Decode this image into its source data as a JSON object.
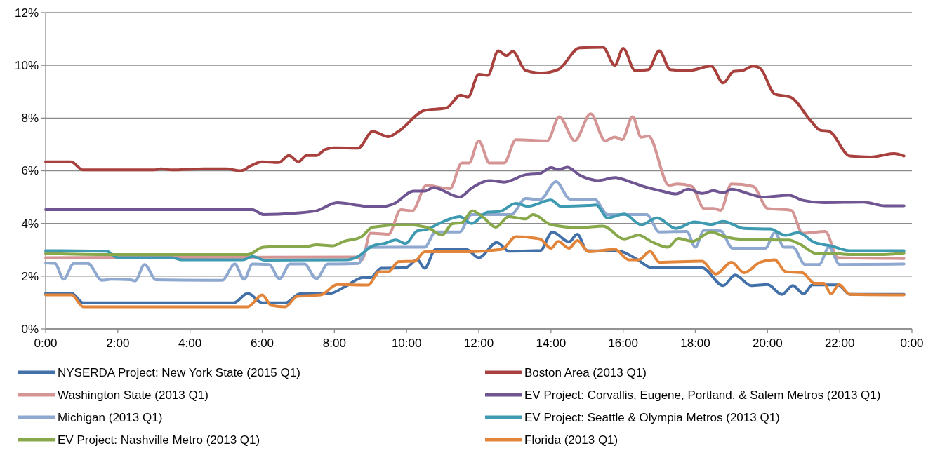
{
  "chart_data": {
    "type": "line",
    "xlim": [
      0,
      24
    ],
    "ylim": [
      0,
      12
    ],
    "xticks": [
      {
        "value": 0,
        "label": "0:00"
      },
      {
        "value": 2,
        "label": "2:00"
      },
      {
        "value": 4,
        "label": "4:00"
      },
      {
        "value": 6,
        "label": "6:00"
      },
      {
        "value": 8,
        "label": "8:00"
      },
      {
        "value": 10,
        "label": "10:00"
      },
      {
        "value": 12,
        "label": "12:00"
      },
      {
        "value": 14,
        "label": "14:00"
      },
      {
        "value": 16,
        "label": "16:00"
      },
      {
        "value": 18,
        "label": "18:00"
      },
      {
        "value": 20,
        "label": "20:00"
      },
      {
        "value": 22,
        "label": "22:00"
      },
      {
        "value": 24,
        "label": "0:00"
      }
    ],
    "yticks": [
      {
        "value": 0,
        "label": "0%"
      },
      {
        "value": 2,
        "label": "2%"
      },
      {
        "value": 4,
        "label": "4%"
      },
      {
        "value": 6,
        "label": "6%"
      },
      {
        "value": 8,
        "label": "8%"
      },
      {
        "value": 10,
        "label": "10%"
      },
      {
        "value": 12,
        "label": "12%"
      }
    ],
    "grid": "y",
    "legend": "bottom",
    "marker": "none",
    "line_style": "solid",
    "series": [
      {
        "name": "NYSERDA Project: New York State (2015 Q1)",
        "color": "#4270a8",
        "x": [
          0,
          0.72,
          1.04,
          5.21,
          5.6,
          6.0,
          6.64,
          7.04,
          7.88,
          8.34,
          8.8,
          9.0,
          9.3,
          9.97,
          10.3,
          10.5,
          10.8,
          11.66,
          12.0,
          12.5,
          12.83,
          13.7,
          14.04,
          14.5,
          14.73,
          15.0,
          15.9,
          16.36,
          16.8,
          18.18,
          18.77,
          19.1,
          19.55,
          20.0,
          20.4,
          20.7,
          21.0,
          21.24,
          21.95,
          22.28,
          23.78
        ],
        "values": [
          1.35,
          1.35,
          0.99,
          0.99,
          1.35,
          0.99,
          0.99,
          1.33,
          1.35,
          1.64,
          1.95,
          1.94,
          2.3,
          2.32,
          2.62,
          2.3,
          3.01,
          3.01,
          2.7,
          3.28,
          2.95,
          2.97,
          3.68,
          3.3,
          3.59,
          2.97,
          2.95,
          2.66,
          2.32,
          2.32,
          1.64,
          2.04,
          1.64,
          1.68,
          1.31,
          1.64,
          1.33,
          1.67,
          1.67,
          1.31,
          1.31
        ]
      },
      {
        "name": "Boston Area (2013 Q1)",
        "color": "#a8403d",
        "x": [
          0,
          0.7,
          1.04,
          3.0,
          3.2,
          3.5,
          4.4,
          5.0,
          5.4,
          5.7,
          6.0,
          6.45,
          6.74,
          7.0,
          7.23,
          7.5,
          7.75,
          8.0,
          8.66,
          9.06,
          9.5,
          9.77,
          10.5,
          11.1,
          11.5,
          11.7,
          12.0,
          12.25,
          12.54,
          12.77,
          12.94,
          13.3,
          13.75,
          14.2,
          14.8,
          15.44,
          15.77,
          16.0,
          16.33,
          16.7,
          17.0,
          17.3,
          17.8,
          18.44,
          18.77,
          19.06,
          19.3,
          19.6,
          19.8,
          20.2,
          20.65,
          21.2,
          21.46,
          21.7,
          22.28,
          22.87,
          23.5,
          23.78
        ],
        "values": [
          6.34,
          6.34,
          6.03,
          6.03,
          6.07,
          6.03,
          6.07,
          6.07,
          6.0,
          6.2,
          6.34,
          6.31,
          6.58,
          6.34,
          6.58,
          6.58,
          6.81,
          6.87,
          6.86,
          7.49,
          7.29,
          7.49,
          8.29,
          8.38,
          8.87,
          8.79,
          9.66,
          9.62,
          10.55,
          10.37,
          10.53,
          9.8,
          9.71,
          9.84,
          10.66,
          10.68,
          10.0,
          10.64,
          9.8,
          9.84,
          10.55,
          9.84,
          9.8,
          9.97,
          9.33,
          9.77,
          9.8,
          9.97,
          9.88,
          8.91,
          8.78,
          7.89,
          7.54,
          7.5,
          6.56,
          6.52,
          6.65,
          6.56
        ]
      },
      {
        "name": "Washington State (2013 Q1)",
        "color": "#d49594",
        "x": [
          0,
          8.6,
          8.76,
          9.0,
          9.5,
          9.84,
          10.16,
          10.55,
          11.2,
          11.53,
          11.73,
          12.0,
          12.3,
          12.7,
          13.03,
          13.9,
          14.23,
          14.66,
          15.1,
          15.5,
          15.77,
          15.97,
          16.26,
          16.5,
          16.7,
          17.27,
          17.5,
          17.9,
          18.24,
          18.5,
          18.7,
          19.0,
          19.6,
          20.0,
          20.65,
          20.97,
          21.6,
          21.95,
          23.78
        ],
        "values": [
          2.7,
          2.73,
          2.62,
          3.63,
          3.59,
          4.52,
          4.48,
          5.45,
          5.32,
          6.29,
          6.29,
          7.14,
          6.29,
          6.29,
          7.18,
          7.14,
          8.05,
          7.14,
          8.16,
          7.14,
          7.28,
          7.18,
          8.05,
          7.27,
          7.32,
          5.45,
          5.5,
          5.41,
          4.57,
          4.57,
          4.5,
          5.5,
          5.41,
          4.57,
          4.5,
          3.63,
          3.7,
          2.7,
          2.67
        ]
      },
      {
        "name": "EV Project: Corvallis, Eugene, Portland, & Salem Metros (2013 Q1)",
        "color": "#6f5591",
        "x": [
          0,
          5.73,
          6.03,
          6.9,
          7.5,
          8.08,
          8.86,
          9.25,
          9.64,
          10.2,
          10.5,
          10.75,
          11.47,
          11.8,
          12.3,
          12.7,
          13.3,
          13.7,
          14.0,
          14.2,
          14.46,
          14.8,
          15.3,
          15.77,
          16.2,
          16.55,
          17.07,
          17.46,
          17.8,
          18.2,
          18.5,
          18.77,
          19.0,
          19.5,
          19.87,
          20.6,
          20.97,
          21.56,
          22.66,
          23.25,
          23.78
        ],
        "values": [
          4.52,
          4.52,
          4.34,
          4.39,
          4.48,
          4.79,
          4.65,
          4.63,
          4.74,
          5.23,
          5.23,
          5.36,
          5.0,
          5.34,
          5.63,
          5.57,
          5.85,
          5.9,
          6.12,
          6.05,
          6.13,
          5.83,
          5.63,
          5.74,
          5.58,
          5.41,
          5.23,
          5.12,
          5.3,
          5.14,
          5.25,
          5.16,
          5.3,
          5.12,
          5.0,
          5.07,
          4.88,
          4.79,
          4.81,
          4.67,
          4.67
        ]
      },
      {
        "name": "Michigan (2013 Q1)",
        "color": "#8ea8cf",
        "x": [
          0,
          0.26,
          0.5,
          0.78,
          1.17,
          1.56,
          1.82,
          2.35,
          2.48,
          2.74,
          3.06,
          4.89,
          5.24,
          5.5,
          5.73,
          6.19,
          6.48,
          6.77,
          7.17,
          7.5,
          7.82,
          8.08,
          8.66,
          8.93,
          9.77,
          10.5,
          10.8,
          11.47,
          11.8,
          12.9,
          13.3,
          13.7,
          14.14,
          14.53,
          15.2,
          15.57,
          16.65,
          17.0,
          17.76,
          18.0,
          18.24,
          18.7,
          19.03,
          19.94,
          20.2,
          20.46,
          20.7,
          21.04,
          21.43,
          21.7,
          22.0,
          23.78
        ],
        "values": [
          2.5,
          2.48,
          1.88,
          2.48,
          2.48,
          1.84,
          1.88,
          1.86,
          1.82,
          2.44,
          1.86,
          1.84,
          2.46,
          1.88,
          2.46,
          2.44,
          1.9,
          2.46,
          2.46,
          1.9,
          2.46,
          2.46,
          2.48,
          3.09,
          3.1,
          3.1,
          3.68,
          3.68,
          4.34,
          4.34,
          4.95,
          4.9,
          5.59,
          4.92,
          4.92,
          4.34,
          4.34,
          3.68,
          3.7,
          3.1,
          3.74,
          3.72,
          3.06,
          3.06,
          3.65,
          3.1,
          3.1,
          2.44,
          2.44,
          3.1,
          2.44,
          2.46
        ]
      },
      {
        "name": "EV Project: Seattle & Olympia Metros (2013 Q1)",
        "color": "#3e9ab0",
        "x": [
          0,
          1.69,
          2.0,
          3.5,
          3.78,
          5.47,
          5.73,
          6.06,
          8.34,
          8.66,
          9.06,
          9.38,
          9.7,
          9.97,
          10.3,
          10.55,
          10.95,
          11.47,
          11.8,
          12.25,
          12.57,
          13.03,
          13.36,
          14.0,
          14.27,
          15.05,
          15.25,
          15.57,
          16.03,
          16.5,
          16.94,
          17.46,
          17.98,
          18.44,
          18.77,
          19.35,
          20.07,
          20.5,
          20.85,
          21.3,
          21.76,
          22.28,
          23.78
        ],
        "values": [
          2.97,
          2.95,
          2.7,
          2.7,
          2.62,
          2.62,
          2.75,
          2.61,
          2.62,
          2.75,
          3.15,
          3.24,
          3.37,
          3.24,
          3.72,
          3.77,
          4.03,
          4.26,
          4.0,
          4.43,
          4.45,
          4.76,
          4.65,
          4.89,
          4.65,
          4.68,
          4.7,
          4.21,
          4.36,
          3.95,
          4.21,
          3.81,
          4.06,
          3.96,
          4.08,
          3.81,
          3.79,
          3.55,
          3.65,
          3.28,
          3.15,
          2.97,
          2.97
        ]
      },
      {
        "name": "EV Project: Nashville Metro (2013 Q1)",
        "color": "#87a84b",
        "x": [
          0,
          1.82,
          5.6,
          6.03,
          6.7,
          7.23,
          7.5,
          7.95,
          8.27,
          8.73,
          9.06,
          9.97,
          10.55,
          10.98,
          11.27,
          11.53,
          11.82,
          12.1,
          12.47,
          12.83,
          13.3,
          13.5,
          14.0,
          14.8,
          15.44,
          16.03,
          16.42,
          16.8,
          17.24,
          17.53,
          17.92,
          18.44,
          18.77,
          19.4,
          20.59,
          20.9,
          21.37,
          21.76,
          22.28,
          23.2,
          23.78
        ],
        "values": [
          2.86,
          2.82,
          2.82,
          3.1,
          3.13,
          3.13,
          3.19,
          3.15,
          3.32,
          3.48,
          3.86,
          3.95,
          3.86,
          3.56,
          3.99,
          4.03,
          4.48,
          4.26,
          3.86,
          4.26,
          4.17,
          4.34,
          3.95,
          3.84,
          3.9,
          3.41,
          3.56,
          3.3,
          3.1,
          3.43,
          3.32,
          3.68,
          3.52,
          3.39,
          3.37,
          3.21,
          2.85,
          2.87,
          2.82,
          2.82,
          2.88
        ]
      },
      {
        "name": "Florida (2013 Q1)",
        "color": "#e2853a",
        "x": [
          0,
          0.72,
          1.04,
          5.6,
          6.0,
          6.25,
          6.64,
          6.97,
          7.62,
          8.08,
          8.93,
          9.25,
          9.5,
          9.77,
          10.23,
          10.5,
          11.73,
          12.64,
          13.03,
          13.7,
          14.0,
          14.2,
          14.5,
          14.73,
          15.05,
          15.77,
          16.16,
          16.42,
          16.75,
          17.0,
          18.18,
          18.57,
          19.0,
          19.35,
          19.8,
          20.2,
          20.5,
          20.97,
          21.3,
          21.56,
          21.76,
          21.98,
          22.28,
          23.78
        ],
        "values": [
          1.29,
          1.29,
          0.84,
          0.84,
          1.29,
          0.89,
          0.84,
          1.24,
          1.29,
          1.68,
          1.66,
          2.17,
          2.17,
          2.55,
          2.57,
          2.93,
          2.93,
          3.02,
          3.5,
          3.41,
          3.06,
          3.32,
          3.06,
          3.35,
          2.93,
          3.02,
          2.62,
          2.62,
          2.94,
          2.53,
          2.57,
          2.08,
          2.53,
          2.13,
          2.53,
          2.62,
          2.17,
          2.13,
          1.73,
          1.73,
          1.33,
          1.68,
          1.31,
          1.29
        ]
      }
    ]
  }
}
